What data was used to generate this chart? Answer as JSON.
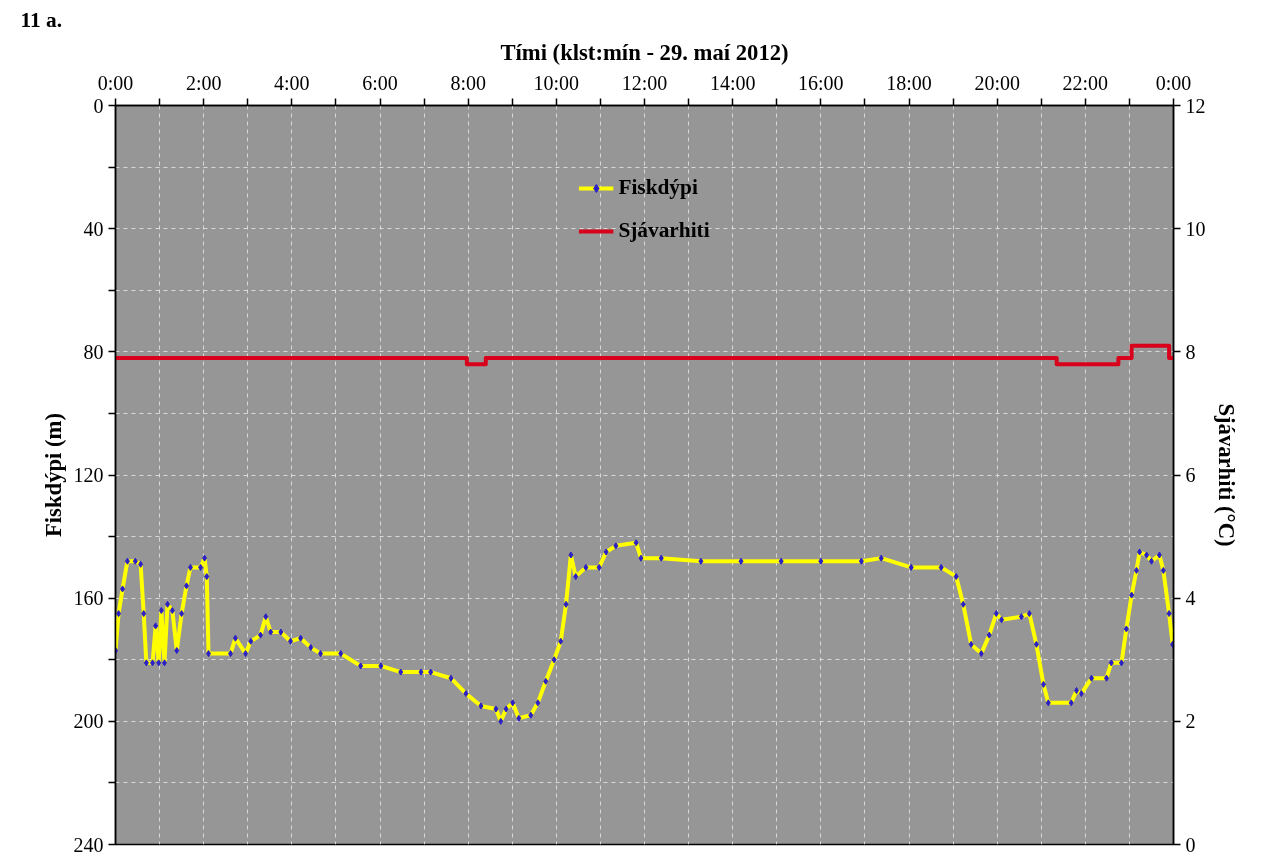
{
  "chart_data": {
    "type": "line",
    "annotations": [
      "11 a."
    ],
    "xlabel": "Tími (klst:mín - 29. maí 2012)",
    "ylabel": "Fiskdýpi (m)",
    "y2label": "Sjávarhiti (°C)",
    "xlim": [
      0,
      24
    ],
    "xticks": [
      {
        "value": 0,
        "label": "0:00"
      },
      {
        "value": 1,
        "label": null
      },
      {
        "value": 2,
        "label": "2:00"
      },
      {
        "value": 3,
        "label": null
      },
      {
        "value": 4,
        "label": "4:00"
      },
      {
        "value": 5,
        "label": null
      },
      {
        "value": 6,
        "label": "6:00"
      },
      {
        "value": 7,
        "label": null
      },
      {
        "value": 8,
        "label": "8:00"
      },
      {
        "value": 9,
        "label": null
      },
      {
        "value": 10,
        "label": "10:00"
      },
      {
        "value": 11,
        "label": null
      },
      {
        "value": 12,
        "label": "12:00"
      },
      {
        "value": 13,
        "label": null
      },
      {
        "value": 14,
        "label": "14:00"
      },
      {
        "value": 15,
        "label": null
      },
      {
        "value": 16,
        "label": "16:00"
      },
      {
        "value": 17,
        "label": null
      },
      {
        "value": 18,
        "label": "18:00"
      },
      {
        "value": 19,
        "label": null
      },
      {
        "value": 20,
        "label": "20:00"
      },
      {
        "value": 21,
        "label": null
      },
      {
        "value": 22,
        "label": "22:00"
      },
      {
        "value": 23,
        "label": null
      },
      {
        "value": 24,
        "label": "0:00"
      }
    ],
    "ylim": [
      240,
      0
    ],
    "yticks": [
      0,
      {
        "value": 20,
        "label": null
      },
      40,
      {
        "value": 60,
        "label": null
      },
      80,
      {
        "value": 100,
        "label": null
      },
      120,
      {
        "value": 140,
        "label": null
      },
      160,
      {
        "value": 180,
        "label": null
      },
      200,
      {
        "value": 220,
        "label": null
      },
      240
    ],
    "y2lim": [
      0,
      12
    ],
    "y2ticks": [
      0,
      2,
      4,
      6,
      8,
      10,
      12
    ],
    "grid": true,
    "legend": "top",
    "series": [
      {
        "name": "Fiskdýpi",
        "color": "#ffff00",
        "marker": "diamond",
        "x": [
          0,
          0.07,
          0.16,
          0.27,
          0.45,
          0.57,
          0.64,
          0.7,
          0.84,
          0.91,
          0.98,
          1.04,
          1.11,
          1.18,
          1.29,
          1.39,
          1.5,
          1.61,
          1.7,
          1.93,
          2.02,
          2.07,
          2.11,
          2.61,
          2.72,
          2.95,
          3.07,
          3.29,
          3.41,
          3.52,
          3.75,
          3.97,
          4.2,
          4.43,
          4.65,
          5.11,
          5.56,
          6.02,
          6.47,
          6.93,
          7.15,
          7.61,
          7.95,
          8.29,
          8.63,
          8.74,
          8.86,
          9.01,
          9.15,
          9.42,
          9.58,
          9.76,
          9.95,
          10.1,
          10.22,
          10.33,
          10.44,
          10.67,
          10.97,
          11.13,
          11.35,
          11.81,
          11.92,
          12.38,
          13.28,
          14.19,
          15.1,
          16.0,
          16.92,
          17.37,
          18.05,
          18.73,
          19.07,
          19.23,
          19.41,
          19.64,
          19.82,
          19.98,
          20.1,
          20.55,
          20.73,
          20.89,
          21.05,
          21.16,
          21.68,
          21.8,
          21.91,
          22.14,
          22.48,
          22.59,
          22.82,
          22.93,
          23.05,
          23.16,
          23.23,
          23.39,
          23.5,
          23.68,
          23.77,
          23.9,
          23.98
        ],
        "values": [
          177,
          165,
          157,
          148,
          148,
          149,
          165,
          181,
          181,
          169,
          181,
          164,
          181,
          162,
          164,
          177,
          165,
          156,
          150,
          150,
          147,
          153,
          178,
          178,
          173,
          178,
          174,
          172,
          166,
          171,
          171,
          174,
          173,
          176,
          178,
          178,
          182,
          182,
          184,
          184,
          184,
          186,
          191,
          195,
          196,
          200,
          196,
          194,
          199,
          198,
          194,
          187,
          180,
          174,
          162,
          146,
          153,
          150,
          150,
          145,
          143,
          142,
          147,
          147,
          148,
          148,
          148,
          148,
          148,
          147,
          150,
          150,
          153,
          162,
          175,
          178,
          172,
          165,
          167,
          166,
          165,
          175,
          188,
          194,
          194,
          190,
          191,
          186,
          186,
          181,
          181,
          170,
          159,
          151,
          145,
          146,
          148,
          146,
          151,
          165,
          175
        ]
      },
      {
        "name": "Sjávarhiti",
        "type": "step",
        "axis": "y2",
        "color": "#d9001b",
        "x": [
          0,
          7.97,
          8.4,
          21.35,
          22.75,
          23.05,
          23.9,
          24
        ],
        "values": [
          7.9,
          7.8,
          7.9,
          7.8,
          7.9,
          8.1,
          7.9,
          7.9
        ]
      }
    ]
  }
}
